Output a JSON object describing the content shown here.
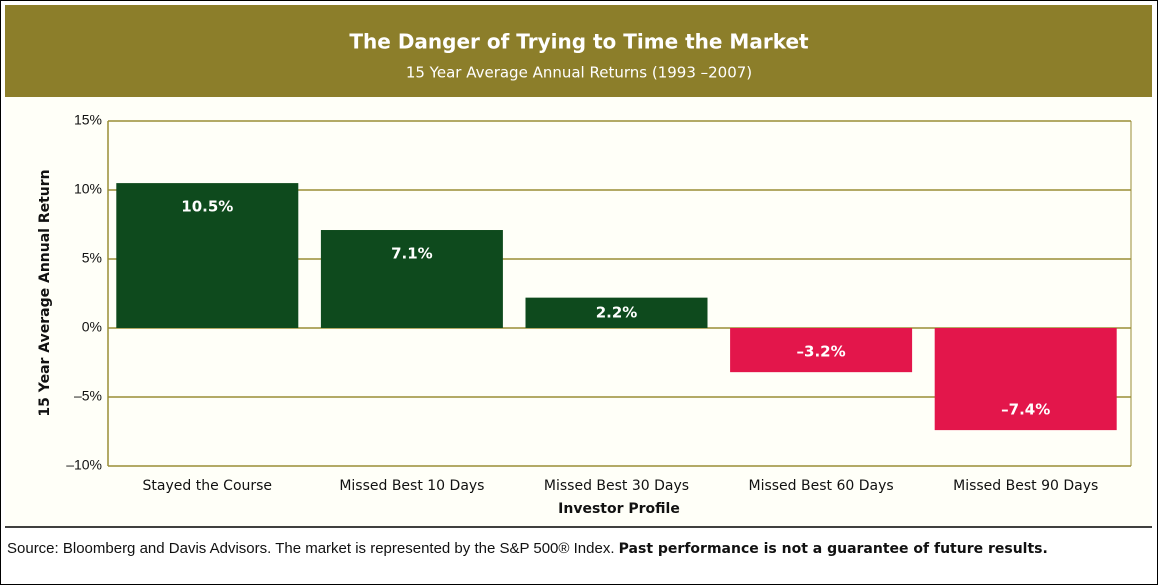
{
  "chart_data": {
    "type": "bar",
    "title": "The Danger of Trying to Time the Market",
    "subtitle": "15 Year Average Annual Returns (1993 –2007)",
    "y_label": "15 Year Average Annual Return",
    "x_label": "Investor Profile",
    "categories": [
      "Stayed the Course",
      "Missed Best 10 Days",
      "Missed Best 30 Days",
      "Missed Best 60 Days",
      "Missed Best 90 Days"
    ],
    "values": [
      10.5,
      7.1,
      2.2,
      -3.2,
      -7.4
    ],
    "value_labels": [
      "10.5%",
      "7.1%",
      "2.2%",
      "–3.2%",
      "–7.4%"
    ],
    "colors": {
      "positive": "#0e4a1d",
      "negative": "#e3164b"
    },
    "ylim": [
      -10,
      15
    ],
    "yticks": [
      {
        "value": -10,
        "label": "–10%"
      },
      {
        "value": -5,
        "label": "–5%"
      },
      {
        "value": 0,
        "label": "0%"
      },
      {
        "value": 5,
        "label": "5%"
      },
      {
        "value": 10,
        "label": "10%"
      },
      {
        "value": 15,
        "label": "15%"
      }
    ],
    "grid": true,
    "note": "Source: Bloomberg and Davis Advisors. The market is represented by the S&P 500® Index.",
    "note_bold": "Past performance is not a guarantee of future results."
  }
}
